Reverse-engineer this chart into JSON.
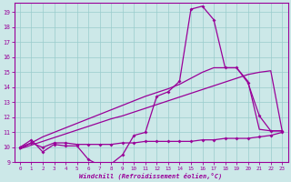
{
  "xlabel": "Windchill (Refroidissement éolien,°C)",
  "x": [
    0,
    1,
    2,
    3,
    4,
    5,
    6,
    7,
    8,
    9,
    10,
    11,
    12,
    13,
    14,
    15,
    16,
    17,
    18,
    19,
    20,
    21,
    22,
    23
  ],
  "curve_wavy": [
    10.0,
    10.5,
    9.7,
    10.2,
    10.1,
    10.1,
    9.2,
    8.8,
    8.9,
    9.5,
    10.8,
    11.0,
    13.4,
    13.7,
    14.4,
    19.2,
    19.4,
    18.5,
    15.3,
    15.3,
    14.3,
    12.1,
    11.1,
    11.1
  ],
  "curve_flat": [
    10.0,
    10.3,
    10.0,
    10.3,
    10.3,
    10.2,
    10.2,
    10.2,
    10.2,
    10.3,
    10.3,
    10.4,
    10.4,
    10.4,
    10.4,
    10.4,
    10.5,
    10.5,
    10.6,
    10.6,
    10.6,
    10.7,
    10.8,
    11.0
  ],
  "line_slow": [
    9.9,
    10.15,
    10.4,
    10.65,
    10.9,
    11.15,
    11.4,
    11.65,
    11.9,
    12.1,
    12.35,
    12.6,
    12.85,
    13.1,
    13.35,
    13.6,
    13.85,
    14.1,
    14.35,
    14.6,
    14.85,
    15.0,
    15.1,
    11.1
  ],
  "line_fast": [
    9.9,
    10.3,
    10.7,
    11.0,
    11.3,
    11.6,
    11.9,
    12.2,
    12.5,
    12.8,
    13.1,
    13.4,
    13.65,
    13.9,
    14.2,
    14.6,
    15.0,
    15.3,
    15.3,
    15.3,
    14.4,
    11.2,
    11.1,
    11.1
  ],
  "line_color": "#990099",
  "bg_color": "#cce8e8",
  "grid_color": "#99cccc",
  "ylim_min": 9,
  "ylim_max": 19.6,
  "yticks": [
    9,
    10,
    11,
    12,
    13,
    14,
    15,
    16,
    17,
    18,
    19
  ],
  "xticks": [
    0,
    1,
    2,
    3,
    4,
    5,
    6,
    7,
    8,
    9,
    10,
    11,
    12,
    13,
    14,
    15,
    16,
    17,
    18,
    19,
    20,
    21,
    22,
    23
  ],
  "markersize": 2.0
}
